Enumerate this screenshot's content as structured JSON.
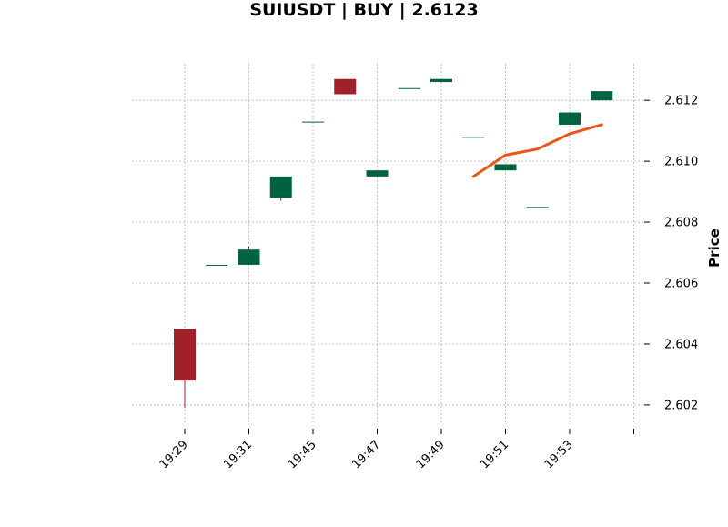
{
  "chart_data": {
    "type": "candlestick",
    "title": "SUIUSDT | BUY | 2.6123",
    "xlabel": "",
    "ylabel": "Price",
    "y_axis_side": "right",
    "ylim": [
      2.6014,
      2.6132
    ],
    "y_ticks": [
      2.602,
      2.604,
      2.606,
      2.608,
      2.61,
      2.612
    ],
    "y_tick_labels": [
      "2.602",
      "2.604",
      "2.606",
      "2.608",
      "2.610",
      "2.612"
    ],
    "x_tick_labels": [
      "19:29",
      "19:31",
      "19:45",
      "19:47",
      "19:49",
      "19:51",
      "19:53",
      ""
    ],
    "grid": true,
    "colors": {
      "up": "#006340",
      "down": "#a02128",
      "line": "#e8561a",
      "grid": "#b3b3b3"
    },
    "candles": [
      {
        "open": 2.6045,
        "high": 2.6045,
        "low": 2.6019,
        "close": 2.6028
      },
      {
        "open": 2.6066,
        "high": 2.6066,
        "low": 2.6066,
        "close": 2.6066
      },
      {
        "open": 2.6066,
        "high": 2.6072,
        "low": 2.6066,
        "close": 2.6071
      },
      {
        "open": 2.6088,
        "high": 2.6095,
        "low": 2.6087,
        "close": 2.6095
      },
      {
        "open": 2.6113,
        "high": 2.6113,
        "low": 2.6113,
        "close": 2.6113
      },
      {
        "open": 2.6127,
        "high": 2.6127,
        "low": 2.6122,
        "close": 2.6122
      },
      {
        "open": 2.6095,
        "high": 2.6097,
        "low": 2.6095,
        "close": 2.6097
      },
      {
        "open": 2.6124,
        "high": 2.6124,
        "low": 2.6124,
        "close": 2.6124
      },
      {
        "open": 2.6126,
        "high": 2.6127,
        "low": 2.6126,
        "close": 2.6127
      },
      {
        "open": 2.6108,
        "high": 2.6108,
        "low": 2.6108,
        "close": 2.6108
      },
      {
        "open": 2.6097,
        "high": 2.6099,
        "low": 2.6097,
        "close": 2.6099
      },
      {
        "open": 2.6085,
        "high": 2.6085,
        "low": 2.6085,
        "close": 2.6085
      },
      {
        "open": 2.6112,
        "high": 2.6116,
        "low": 2.6112,
        "close": 2.6116
      },
      {
        "open": 2.612,
        "high": 2.6123,
        "low": 2.612,
        "close": 2.6123
      }
    ],
    "line_series": {
      "start_index": 9,
      "values": [
        2.6095,
        2.6102,
        2.6104,
        2.6109,
        2.6112
      ]
    }
  }
}
